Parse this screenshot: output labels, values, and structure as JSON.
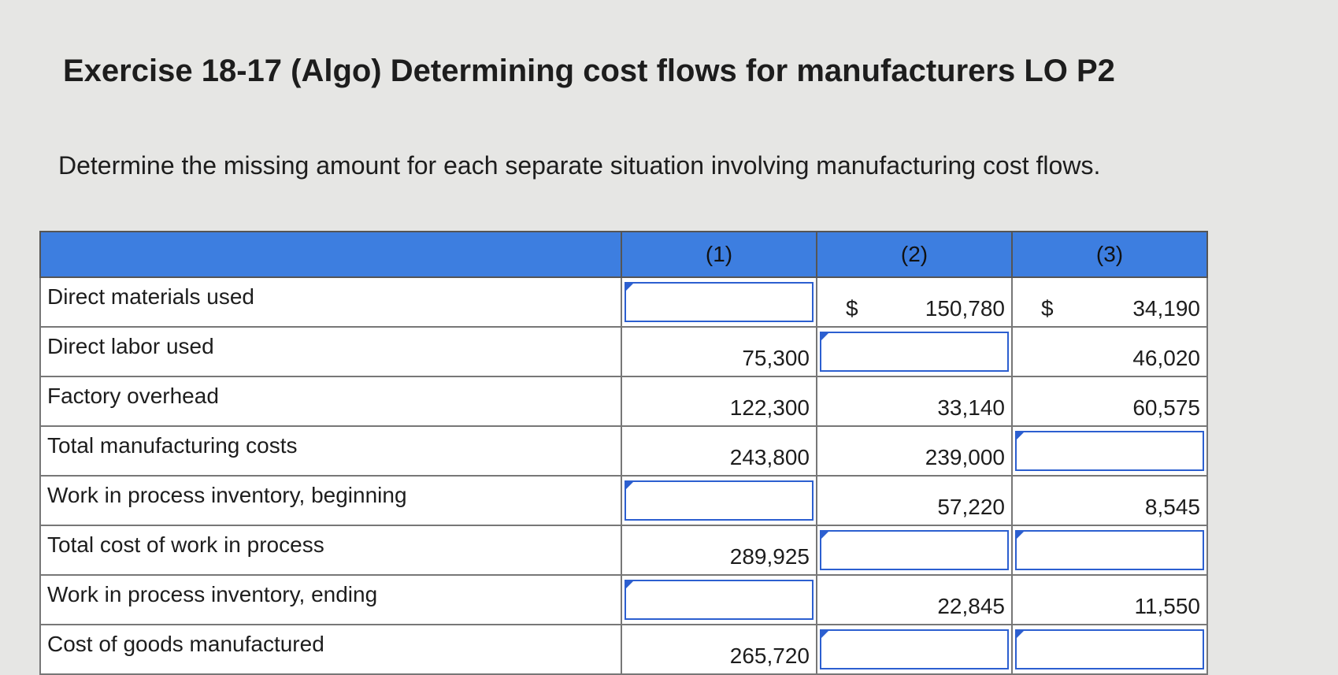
{
  "header": {
    "title": "Exercise 18-17 (Algo) Determining cost flows for manufacturers LO P2",
    "instruction": "Determine the missing amount for each separate situation involving manufacturing cost flows."
  },
  "table": {
    "columns": [
      "(1)",
      "(2)",
      "(3)"
    ],
    "rows": [
      {
        "label": "Direct materials used",
        "cells": [
          null,
          {
            "symbol": "$",
            "amount": "150,780"
          },
          {
            "symbol": "$",
            "amount": "34,190"
          }
        ]
      },
      {
        "label": "Direct labor used",
        "cells": [
          {
            "amount": "75,300"
          },
          null,
          {
            "amount": "46,020"
          }
        ]
      },
      {
        "label": "Factory overhead",
        "cells": [
          {
            "amount": "122,300"
          },
          {
            "amount": "33,140"
          },
          {
            "amount": "60,575"
          }
        ]
      },
      {
        "label": "Total manufacturing costs",
        "cells": [
          {
            "amount": "243,800"
          },
          {
            "amount": "239,000"
          },
          null
        ]
      },
      {
        "label": "Work in process inventory, beginning",
        "cells": [
          null,
          {
            "amount": "57,220"
          },
          {
            "amount": "8,545"
          }
        ]
      },
      {
        "label": "Total cost of work in process",
        "cells": [
          {
            "amount": "289,925"
          },
          null,
          null
        ]
      },
      {
        "label": "Work in process inventory, ending",
        "cells": [
          null,
          {
            "amount": "22,845"
          },
          {
            "amount": "11,550"
          }
        ]
      },
      {
        "label": "Cost of goods manufactured",
        "cells": [
          {
            "amount": "265,720"
          },
          null,
          null
        ]
      }
    ]
  }
}
